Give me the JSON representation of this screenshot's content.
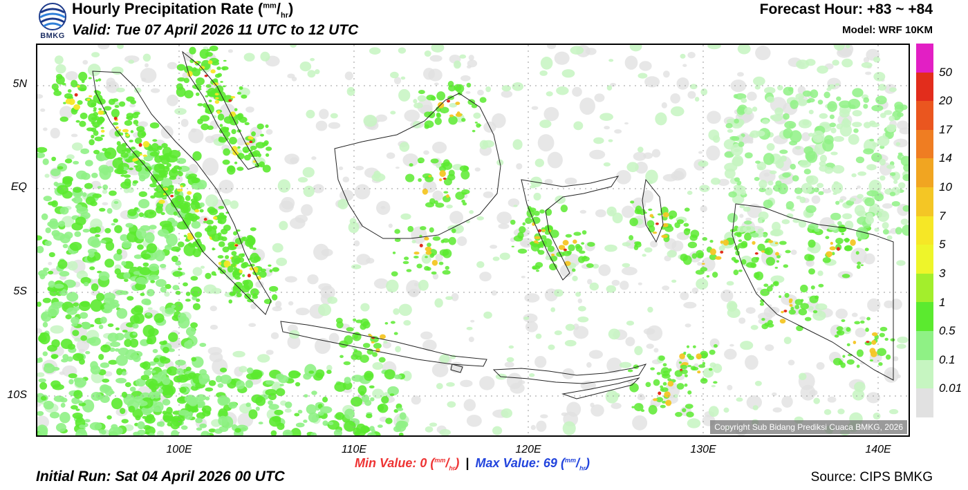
{
  "header": {
    "title_prefix": "Hourly Precipitation Rate (",
    "title_unit_num": "mm",
    "title_unit_den": "hr",
    "title_suffix": ")",
    "valid": "Valid: Tue 07 April 2026 11 UTC to 12 UTC",
    "forecast_hour": "Forecast Hour: +83 ~ +84",
    "model": "Model: WRF 10KM",
    "logo_text": "BMKG"
  },
  "map": {
    "lat_labels": [
      "5N",
      "EQ",
      "5S",
      "10S"
    ],
    "lon_labels": [
      "100E",
      "110E",
      "120E",
      "130E",
      "140E"
    ],
    "copyright": "Copyright Sub Bidang Prediksi Cuaca BMKG, 2026",
    "extent": {
      "lon_min": 92,
      "lon_max": 142,
      "lat_min": -12,
      "lat_max": 7
    }
  },
  "legend": {
    "labels": [
      "50",
      "20",
      "17",
      "14",
      "10",
      "7",
      "5",
      "3",
      "1",
      "0.5",
      "0.1",
      "0.01"
    ],
    "colors": [
      "#e21fc4",
      "#e22d1c",
      "#ea561f",
      "#ef7d22",
      "#f1a521",
      "#f4c625",
      "#f6e726",
      "#eef52a",
      "#a3ee2c",
      "#5bea2f",
      "#8ff185",
      "#c6f5c1",
      "#e1e1e1"
    ]
  },
  "footer": {
    "min_label": "Min Value:",
    "min_value": "0",
    "max_label": "Max Value:",
    "max_value": "69",
    "unit_num": "mm",
    "unit_den": "hr",
    "separator": "|",
    "initial_run": "Initial Run: Sat 04 April 2026 00 UTC",
    "source": "Source: CIPS BMKG"
  }
}
